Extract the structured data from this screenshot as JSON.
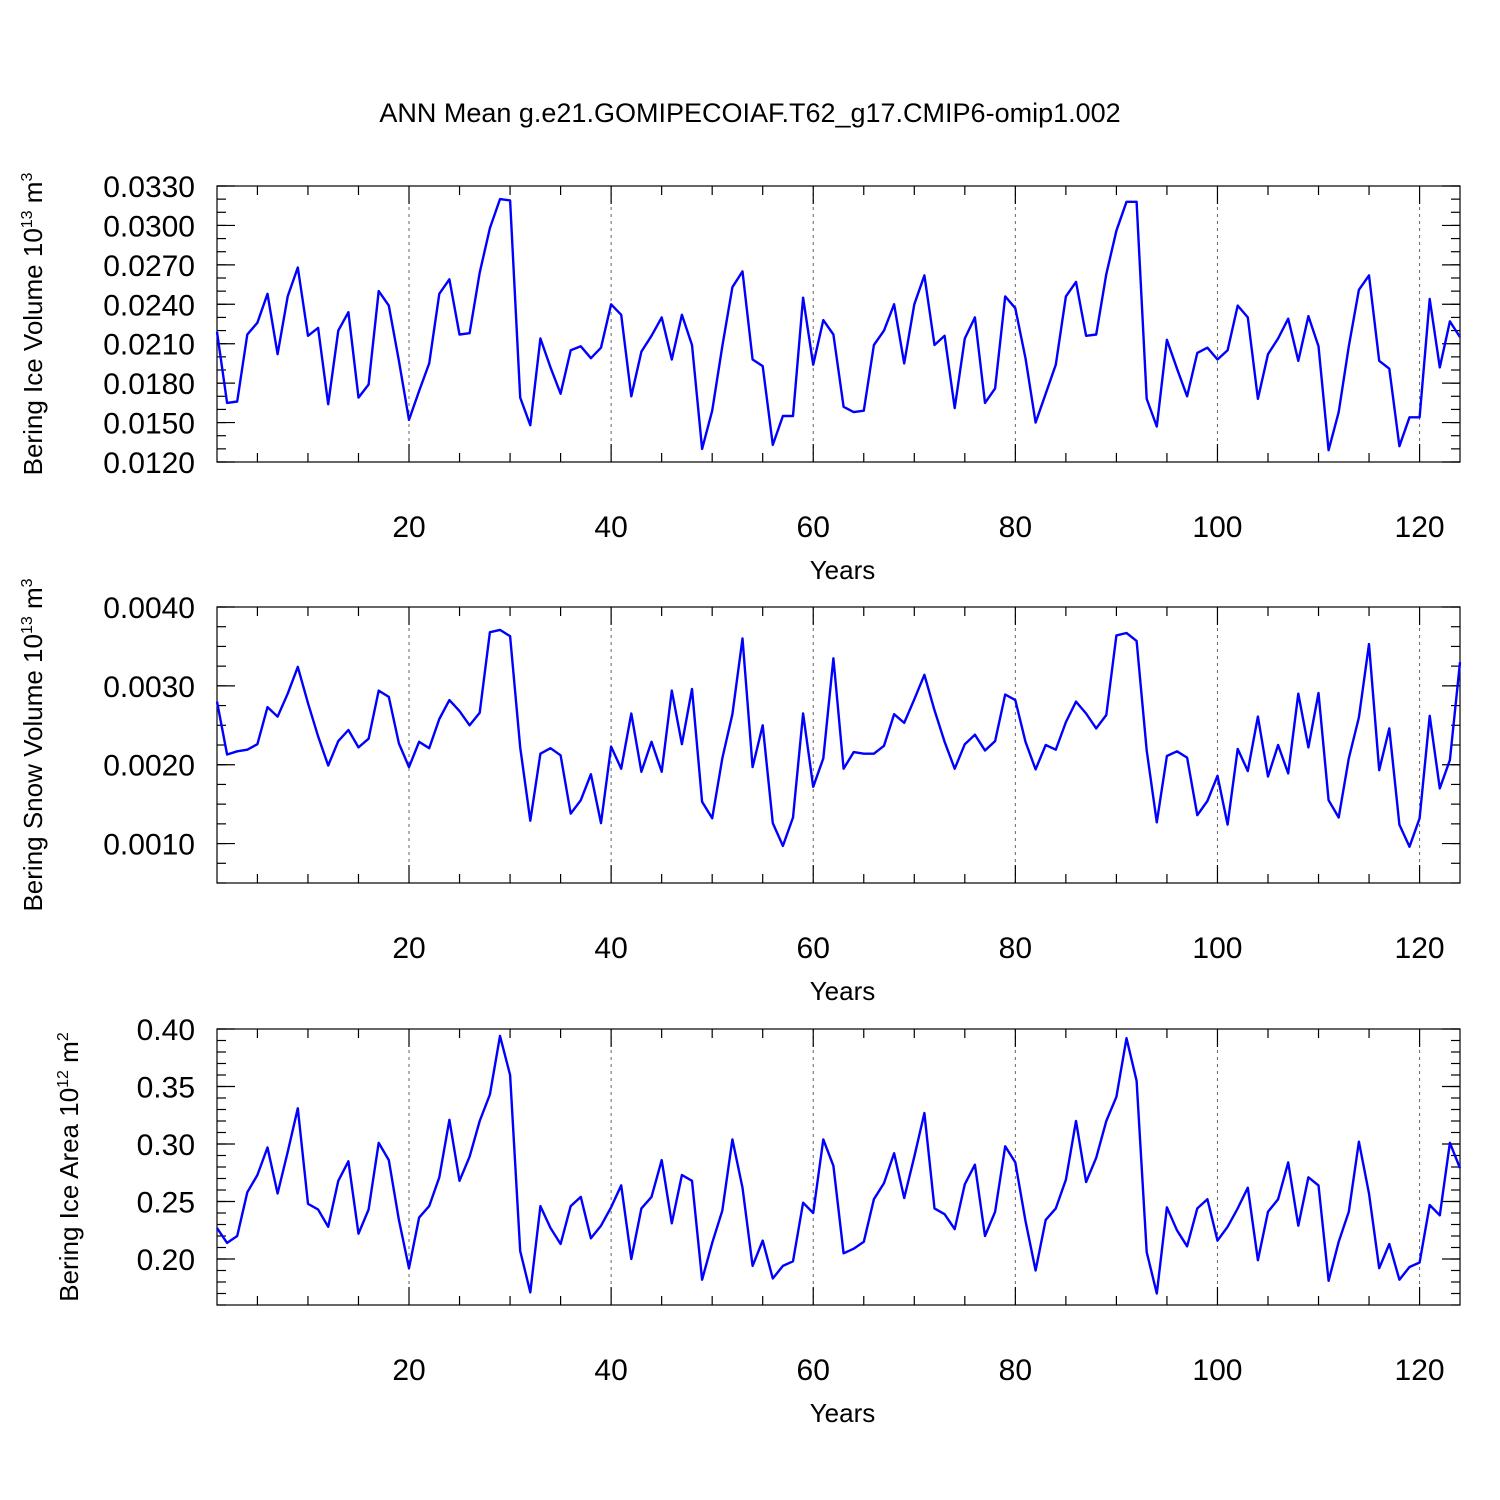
{
  "chart_data": {
    "title": "ANN Mean g.e21.GOMIPECOIAF.T62_g17.CMIP6-omip1.002",
    "colors": {
      "line": "#0000ff",
      "grid": "#666666",
      "axis": "#000000"
    },
    "panels": [
      {
        "type": "line",
        "ylabel_main": "Bering Ice Volume 10",
        "ylabel_exp": "13",
        "ylabel_unit": " m",
        "ylabel_unit_exp": "3",
        "xlabel": "Years",
        "xlim": [
          1,
          124
        ],
        "ylim": [
          0.012,
          0.033
        ],
        "y_major_step": 0.003,
        "y_minor_step": 0.001,
        "y_decimals": 4,
        "x_ticks": [
          20,
          40,
          60,
          80,
          100,
          120
        ],
        "x": [
          1,
          2,
          3,
          4,
          5,
          6,
          7,
          8,
          9,
          10,
          11,
          12,
          13,
          14,
          15,
          16,
          17,
          18,
          19,
          20,
          21,
          22,
          23,
          24,
          25,
          26,
          27,
          28,
          29,
          30,
          31,
          32,
          33,
          34,
          35,
          36,
          37,
          38,
          39,
          40,
          41,
          42,
          43,
          44,
          45,
          46,
          47,
          48,
          49,
          50,
          51,
          52,
          53,
          54,
          55,
          56,
          57,
          58,
          59,
          60,
          61,
          62,
          63,
          64,
          65,
          66,
          67,
          68,
          69,
          70,
          71,
          72,
          73,
          74,
          75,
          76,
          77,
          78,
          79,
          80,
          81,
          82,
          83,
          84,
          85,
          86,
          87,
          88,
          89,
          90,
          91,
          92,
          93,
          94,
          95,
          96,
          97,
          98,
          99,
          100,
          101,
          102,
          103,
          104,
          105,
          106,
          107,
          108,
          109,
          110,
          111,
          112,
          113,
          114,
          115,
          116,
          117,
          118,
          119,
          120,
          121,
          122,
          123,
          124
        ],
        "values": [
          0.0219,
          0.0165,
          0.0166,
          0.0217,
          0.0226,
          0.0248,
          0.0202,
          0.0246,
          0.0268,
          0.0216,
          0.0222,
          0.0164,
          0.022,
          0.0234,
          0.0169,
          0.0179,
          0.025,
          0.0239,
          0.0197,
          0.0152,
          0.0174,
          0.0195,
          0.0248,
          0.0259,
          0.0217,
          0.0218,
          0.0264,
          0.0298,
          0.032,
          0.0319,
          0.0169,
          0.0148,
          0.0214,
          0.0192,
          0.0172,
          0.0205,
          0.0208,
          0.0199,
          0.0207,
          0.024,
          0.0232,
          0.017,
          0.0204,
          0.0216,
          0.023,
          0.0198,
          0.0232,
          0.0209,
          0.013,
          0.0159,
          0.0208,
          0.0253,
          0.0265,
          0.0198,
          0.0193,
          0.0133,
          0.0155,
          0.0155,
          0.0245,
          0.0194,
          0.0228,
          0.0217,
          0.0162,
          0.0158,
          0.0159,
          0.0209,
          0.022,
          0.024,
          0.0195,
          0.024,
          0.0262,
          0.0209,
          0.0216,
          0.0161,
          0.0214,
          0.023,
          0.0165,
          0.0176,
          0.0246,
          0.0237,
          0.0199,
          0.015,
          0.0172,
          0.0194,
          0.0246,
          0.0257,
          0.0216,
          0.0217,
          0.0263,
          0.0296,
          0.0318,
          0.0318,
          0.0168,
          0.0147,
          0.0213,
          0.0191,
          0.017,
          0.0203,
          0.0207,
          0.0198,
          0.0205,
          0.0239,
          0.023,
          0.0168,
          0.0202,
          0.0214,
          0.0229,
          0.0197,
          0.0231,
          0.0208,
          0.0129,
          0.0158,
          0.0208,
          0.0251,
          0.0262,
          0.0197,
          0.0191,
          0.0132,
          0.0154,
          0.0154,
          0.0244,
          0.0192,
          0.0227,
          0.0215
        ]
      },
      {
        "type": "line",
        "ylabel_main": "Bering Snow Volume 10",
        "ylabel_exp": "13",
        "ylabel_unit": " m",
        "ylabel_unit_exp": "3",
        "xlabel": "Years",
        "xlim": [
          1,
          124
        ],
        "ylim": [
          0.0005,
          0.004
        ],
        "y_major_step": 0.001,
        "y_minor_step": 0.00025,
        "y_major_start": 0.001,
        "y_decimals": 4,
        "x_ticks": [
          20,
          40,
          60,
          80,
          100,
          120
        ],
        "x": [
          1,
          2,
          3,
          4,
          5,
          6,
          7,
          8,
          9,
          10,
          11,
          12,
          13,
          14,
          15,
          16,
          17,
          18,
          19,
          20,
          21,
          22,
          23,
          24,
          25,
          26,
          27,
          28,
          29,
          30,
          31,
          32,
          33,
          34,
          35,
          36,
          37,
          38,
          39,
          40,
          41,
          42,
          43,
          44,
          45,
          46,
          47,
          48,
          49,
          50,
          51,
          52,
          53,
          54,
          55,
          56,
          57,
          58,
          59,
          60,
          61,
          62,
          63,
          64,
          65,
          66,
          67,
          68,
          69,
          70,
          71,
          72,
          73,
          74,
          75,
          76,
          77,
          78,
          79,
          80,
          81,
          82,
          83,
          84,
          85,
          86,
          87,
          88,
          89,
          90,
          91,
          92,
          93,
          94,
          95,
          96,
          97,
          98,
          99,
          100,
          101,
          102,
          103,
          104,
          105,
          106,
          107,
          108,
          109,
          110,
          111,
          112,
          113,
          114,
          115,
          116,
          117,
          118,
          119,
          120,
          121,
          122,
          123,
          124
        ],
        "values": [
          0.0028,
          0.00213,
          0.00217,
          0.00219,
          0.00226,
          0.00273,
          0.00261,
          0.0029,
          0.00324,
          0.00278,
          0.00236,
          0.00199,
          0.0023,
          0.00244,
          0.00222,
          0.00233,
          0.00294,
          0.00286,
          0.00227,
          0.00197,
          0.00229,
          0.00221,
          0.00258,
          0.00282,
          0.00268,
          0.0025,
          0.00266,
          0.00368,
          0.00371,
          0.00363,
          0.00222,
          0.00129,
          0.00214,
          0.00221,
          0.00212,
          0.00138,
          0.00155,
          0.00188,
          0.00126,
          0.00223,
          0.00195,
          0.00265,
          0.00191,
          0.00229,
          0.00191,
          0.00294,
          0.00226,
          0.00296,
          0.00153,
          0.00132,
          0.00208,
          0.00264,
          0.0036,
          0.00197,
          0.0025,
          0.00126,
          0.00097,
          0.00133,
          0.00265,
          0.00172,
          0.00208,
          0.00335,
          0.00195,
          0.00216,
          0.00214,
          0.00214,
          0.00224,
          0.00264,
          0.00253,
          0.00283,
          0.00314,
          0.00269,
          0.00229,
          0.00195,
          0.00226,
          0.00238,
          0.00218,
          0.0023,
          0.00289,
          0.00282,
          0.00229,
          0.00194,
          0.00225,
          0.00219,
          0.00254,
          0.0028,
          0.00265,
          0.00246,
          0.00263,
          0.00364,
          0.00367,
          0.00357,
          0.00218,
          0.00127,
          0.00211,
          0.00217,
          0.00209,
          0.00136,
          0.00154,
          0.00186,
          0.00124,
          0.0022,
          0.00192,
          0.00261,
          0.00185,
          0.00225,
          0.00189,
          0.0029,
          0.00222,
          0.00291,
          0.00155,
          0.00133,
          0.00208,
          0.0026,
          0.00353,
          0.00193,
          0.00246,
          0.00124,
          0.00096,
          0.00132,
          0.00262,
          0.0017,
          0.00206,
          0.0033
        ]
      },
      {
        "type": "line",
        "ylabel_main": "Bering Ice Area 10",
        "ylabel_exp": "12",
        "ylabel_unit": " m",
        "ylabel_unit_exp": "2",
        "xlabel": "Years",
        "xlim": [
          1,
          124
        ],
        "ylim": [
          0.16,
          0.4
        ],
        "y_major_step": 0.05,
        "y_minor_step": 0.01,
        "y_major_start": 0.2,
        "y_decimals": 2,
        "x_ticks": [
          20,
          40,
          60,
          80,
          100,
          120
        ],
        "x": [
          1,
          2,
          3,
          4,
          5,
          6,
          7,
          8,
          9,
          10,
          11,
          12,
          13,
          14,
          15,
          16,
          17,
          18,
          19,
          20,
          21,
          22,
          23,
          24,
          25,
          26,
          27,
          28,
          29,
          30,
          31,
          32,
          33,
          34,
          35,
          36,
          37,
          38,
          39,
          40,
          41,
          42,
          43,
          44,
          45,
          46,
          47,
          48,
          49,
          50,
          51,
          52,
          53,
          54,
          55,
          56,
          57,
          58,
          59,
          60,
          61,
          62,
          63,
          64,
          65,
          66,
          67,
          68,
          69,
          70,
          71,
          72,
          73,
          74,
          75,
          76,
          77,
          78,
          79,
          80,
          81,
          82,
          83,
          84,
          85,
          86,
          87,
          88,
          89,
          90,
          91,
          92,
          93,
          94,
          95,
          96,
          97,
          98,
          99,
          100,
          101,
          102,
          103,
          104,
          105,
          106,
          107,
          108,
          109,
          110,
          111,
          112,
          113,
          114,
          115,
          116,
          117,
          118,
          119,
          120,
          121,
          122,
          123,
          124
        ],
        "values": [
          0.227,
          0.214,
          0.22,
          0.258,
          0.273,
          0.297,
          0.257,
          0.293,
          0.331,
          0.248,
          0.243,
          0.228,
          0.268,
          0.285,
          0.222,
          0.243,
          0.301,
          0.286,
          0.234,
          0.192,
          0.236,
          0.246,
          0.271,
          0.321,
          0.268,
          0.289,
          0.32,
          0.343,
          0.394,
          0.36,
          0.207,
          0.171,
          0.246,
          0.227,
          0.213,
          0.246,
          0.254,
          0.218,
          0.229,
          0.245,
          0.264,
          0.2,
          0.244,
          0.254,
          0.286,
          0.231,
          0.273,
          0.268,
          0.182,
          0.214,
          0.242,
          0.304,
          0.262,
          0.194,
          0.216,
          0.183,
          0.194,
          0.198,
          0.249,
          0.24,
          0.304,
          0.281,
          0.205,
          0.209,
          0.215,
          0.252,
          0.266,
          0.292,
          0.253,
          0.289,
          0.327,
          0.244,
          0.239,
          0.226,
          0.265,
          0.282,
          0.22,
          0.241,
          0.298,
          0.284,
          0.233,
          0.19,
          0.234,
          0.244,
          0.269,
          0.32,
          0.267,
          0.288,
          0.32,
          0.341,
          0.392,
          0.355,
          0.206,
          0.17,
          0.245,
          0.225,
          0.211,
          0.244,
          0.252,
          0.216,
          0.228,
          0.244,
          0.262,
          0.199,
          0.241,
          0.252,
          0.284,
          0.229,
          0.271,
          0.264,
          0.181,
          0.215,
          0.241,
          0.302,
          0.257,
          0.192,
          0.213,
          0.182,
          0.193,
          0.197,
          0.247,
          0.238,
          0.301,
          0.279
        ]
      }
    ]
  }
}
